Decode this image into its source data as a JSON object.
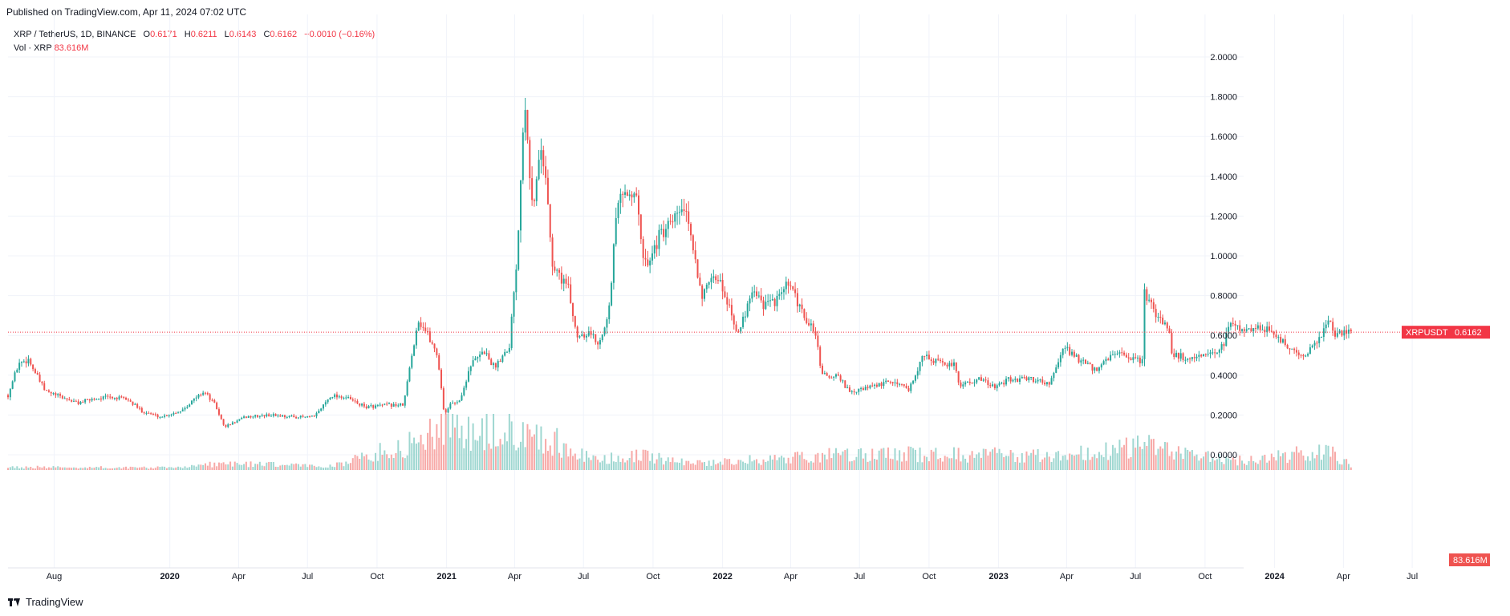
{
  "header": {
    "published_text": "Published on TradingView.com, Apr 11, 2024 07:02 UTC"
  },
  "legend": {
    "symbol": "XRP / TetherUS, 1D, BINANCE",
    "o_label": "O",
    "o_value": "0.6171",
    "h_label": "H",
    "h_value": "0.6211",
    "l_label": "L",
    "l_value": "0.6143",
    "c_label": "C",
    "c_value": "0.6162",
    "change": "−0.0010 (−0.16%)",
    "vol_label": "Vol · XRP",
    "vol_value": "83.616M"
  },
  "price_tag": {
    "symbol": "XRPUSDT",
    "value": "0.6162"
  },
  "volume_tag": "83.616M",
  "footer": {
    "brand": "TradingView"
  },
  "colors": {
    "up": "#26a69a",
    "down": "#ef5350",
    "volume_up": "#9fd7d1",
    "volume_down": "#f7a9a7",
    "grid": "#f0f3fa",
    "price_line": "#f23645"
  },
  "chart_data": {
    "type": "candlestick",
    "title": "XRP / TetherUS, 1D, BINANCE",
    "last_price": 0.6162,
    "y_ticks": [
      "2.0000",
      "1.8000",
      "1.6000",
      "1.4000",
      "1.2000",
      "1.0000",
      "0.8000",
      "0.6000",
      "0.4000",
      "0.2000",
      "0.0000"
    ],
    "ylim": [
      0.0,
      2.1
    ],
    "x_ticks": [
      "Aug",
      "2020",
      "Apr",
      "Jul",
      "Oct",
      "2021",
      "Apr",
      "Jul",
      "Oct",
      "2022",
      "Apr",
      "Jul",
      "Oct",
      "2023",
      "Apr",
      "Jul",
      "Oct",
      "2024",
      "Apr",
      "Jul"
    ],
    "x_range": [
      "2019-06-01",
      "2024-08-07"
    ],
    "price_series": [
      {
        "date": "2019-06-01",
        "close": 0.3
      },
      {
        "date": "2019-06-15",
        "close": 0.46
      },
      {
        "date": "2019-06-28",
        "close": 0.48
      },
      {
        "date": "2019-07-10",
        "close": 0.39
      },
      {
        "date": "2019-07-20",
        "close": 0.32
      },
      {
        "date": "2019-08-10",
        "close": 0.29
      },
      {
        "date": "2019-09-01",
        "close": 0.26
      },
      {
        "date": "2019-09-20",
        "close": 0.28
      },
      {
        "date": "2019-10-10",
        "close": 0.29
      },
      {
        "date": "2019-11-05",
        "close": 0.28
      },
      {
        "date": "2019-11-25",
        "close": 0.22
      },
      {
        "date": "2019-12-20",
        "close": 0.19
      },
      {
        "date": "2020-01-15",
        "close": 0.22
      },
      {
        "date": "2020-02-15",
        "close": 0.32
      },
      {
        "date": "2020-03-01",
        "close": 0.25
      },
      {
        "date": "2020-03-13",
        "close": 0.14
      },
      {
        "date": "2020-04-10",
        "close": 0.19
      },
      {
        "date": "2020-05-15",
        "close": 0.2
      },
      {
        "date": "2020-06-15",
        "close": 0.19
      },
      {
        "date": "2020-07-10",
        "close": 0.19
      },
      {
        "date": "2020-08-01",
        "close": 0.3
      },
      {
        "date": "2020-08-20",
        "close": 0.29
      },
      {
        "date": "2020-09-15",
        "close": 0.24
      },
      {
        "date": "2020-10-15",
        "close": 0.25
      },
      {
        "date": "2020-11-05",
        "close": 0.25
      },
      {
        "date": "2020-11-24",
        "close": 0.68
      },
      {
        "date": "2020-12-05",
        "close": 0.62
      },
      {
        "date": "2020-12-20",
        "close": 0.5
      },
      {
        "date": "2020-12-29",
        "close": 0.2
      },
      {
        "date": "2021-01-05",
        "close": 0.25
      },
      {
        "date": "2021-01-20",
        "close": 0.28
      },
      {
        "date": "2021-02-01",
        "close": 0.45
      },
      {
        "date": "2021-02-20",
        "close": 0.52
      },
      {
        "date": "2021-03-05",
        "close": 0.44
      },
      {
        "date": "2021-03-25",
        "close": 0.55
      },
      {
        "date": "2021-04-05",
        "close": 1.05
      },
      {
        "date": "2021-04-14",
        "close": 1.85
      },
      {
        "date": "2021-04-25",
        "close": 1.2
      },
      {
        "date": "2021-05-05",
        "close": 1.55
      },
      {
        "date": "2021-05-13",
        "close": 1.4
      },
      {
        "date": "2021-05-20",
        "close": 0.95
      },
      {
        "date": "2021-06-10",
        "close": 0.85
      },
      {
        "date": "2021-06-22",
        "close": 0.6
      },
      {
        "date": "2021-07-10",
        "close": 0.62
      },
      {
        "date": "2021-07-20",
        "close": 0.55
      },
      {
        "date": "2021-08-05",
        "close": 0.75
      },
      {
        "date": "2021-08-14",
        "close": 1.25
      },
      {
        "date": "2021-09-06",
        "close": 1.35
      },
      {
        "date": "2021-09-20",
        "close": 0.95
      },
      {
        "date": "2021-10-10",
        "close": 1.1
      },
      {
        "date": "2021-10-25",
        "close": 1.15
      },
      {
        "date": "2021-11-10",
        "close": 1.25
      },
      {
        "date": "2021-11-25",
        "close": 1.0
      },
      {
        "date": "2021-12-05",
        "close": 0.8
      },
      {
        "date": "2021-12-25",
        "close": 0.9
      },
      {
        "date": "2022-01-10",
        "close": 0.75
      },
      {
        "date": "2022-01-22",
        "close": 0.6
      },
      {
        "date": "2022-02-10",
        "close": 0.85
      },
      {
        "date": "2022-02-25",
        "close": 0.75
      },
      {
        "date": "2022-03-15",
        "close": 0.78
      },
      {
        "date": "2022-03-29",
        "close": 0.86
      },
      {
        "date": "2022-04-15",
        "close": 0.72
      },
      {
        "date": "2022-05-05",
        "close": 0.6
      },
      {
        "date": "2022-05-12",
        "close": 0.4
      },
      {
        "date": "2022-06-05",
        "close": 0.39
      },
      {
        "date": "2022-06-18",
        "close": 0.31
      },
      {
        "date": "2022-07-15",
        "close": 0.34
      },
      {
        "date": "2022-08-15",
        "close": 0.37
      },
      {
        "date": "2022-09-05",
        "close": 0.33
      },
      {
        "date": "2022-09-23",
        "close": 0.5
      },
      {
        "date": "2022-10-15",
        "close": 0.46
      },
      {
        "date": "2022-11-05",
        "close": 0.45
      },
      {
        "date": "2022-11-10",
        "close": 0.35
      },
      {
        "date": "2022-12-05",
        "close": 0.38
      },
      {
        "date": "2022-12-30",
        "close": 0.34
      },
      {
        "date": "2023-01-15",
        "close": 0.38
      },
      {
        "date": "2023-02-15",
        "close": 0.38
      },
      {
        "date": "2023-03-10",
        "close": 0.36
      },
      {
        "date": "2023-03-29",
        "close": 0.54
      },
      {
        "date": "2023-04-20",
        "close": 0.47
      },
      {
        "date": "2023-05-10",
        "close": 0.42
      },
      {
        "date": "2023-06-05",
        "close": 0.52
      },
      {
        "date": "2023-06-20",
        "close": 0.48
      },
      {
        "date": "2023-07-12",
        "close": 0.47
      },
      {
        "date": "2023-07-13",
        "close": 0.82
      },
      {
        "date": "2023-07-25",
        "close": 0.72
      },
      {
        "date": "2023-08-15",
        "close": 0.63
      },
      {
        "date": "2023-08-17",
        "close": 0.51
      },
      {
        "date": "2023-09-10",
        "close": 0.48
      },
      {
        "date": "2023-10-10",
        "close": 0.5
      },
      {
        "date": "2023-10-25",
        "close": 0.55
      },
      {
        "date": "2023-11-05",
        "close": 0.68
      },
      {
        "date": "2023-11-20",
        "close": 0.62
      },
      {
        "date": "2023-12-10",
        "close": 0.65
      },
      {
        "date": "2023-12-28",
        "close": 0.62
      },
      {
        "date": "2024-01-15",
        "close": 0.55
      },
      {
        "date": "2024-02-05",
        "close": 0.5
      },
      {
        "date": "2024-02-25",
        "close": 0.55
      },
      {
        "date": "2024-03-05",
        "close": 0.62
      },
      {
        "date": "2024-03-11",
        "close": 0.7
      },
      {
        "date": "2024-03-20",
        "close": 0.6
      },
      {
        "date": "2024-04-01",
        "close": 0.62
      },
      {
        "date": "2024-04-11",
        "close": 0.6162
      }
    ],
    "volume_series": [
      {
        "date": "2019-06-01",
        "volume": 0.06
      },
      {
        "date": "2020-01-01",
        "volume": 0.05
      },
      {
        "date": "2020-03-13",
        "volume": 0.14
      },
      {
        "date": "2020-08-01",
        "volume": 0.08
      },
      {
        "date": "2020-11-24",
        "volume": 0.6
      },
      {
        "date": "2020-12-22",
        "volume": 1.0
      },
      {
        "date": "2021-01-30",
        "volume": 0.75
      },
      {
        "date": "2021-04-14",
        "volume": 0.85
      },
      {
        "date": "2021-05-19",
        "volume": 0.65
      },
      {
        "date": "2021-07-15",
        "volume": 0.2
      },
      {
        "date": "2021-09-07",
        "volume": 0.3
      },
      {
        "date": "2021-12-05",
        "volume": 0.15
      },
      {
        "date": "2022-05-12",
        "volume": 0.3
      },
      {
        "date": "2022-09-23",
        "volume": 0.33
      },
      {
        "date": "2023-03-29",
        "volume": 0.3
      },
      {
        "date": "2023-07-13",
        "volume": 0.52
      },
      {
        "date": "2023-11-05",
        "volume": 0.18
      },
      {
        "date": "2024-03-11",
        "volume": 0.4
      },
      {
        "date": "2024-04-11",
        "volume": 0.1
      }
    ]
  }
}
